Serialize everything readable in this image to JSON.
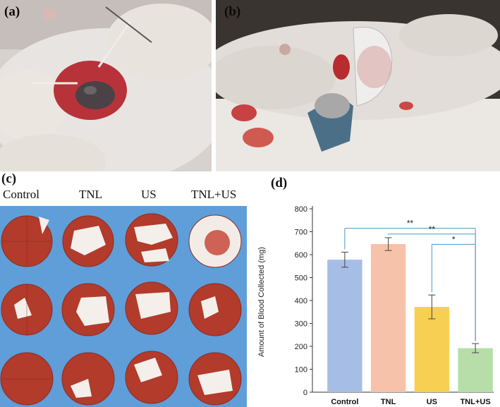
{
  "panels": {
    "a": {
      "label": "(a)"
    },
    "b": {
      "label": "(b)"
    },
    "c": {
      "label": "(c)",
      "columns": [
        "Control",
        "TNL",
        "US",
        "TNL+US"
      ]
    },
    "d": {
      "label": "(d)"
    }
  },
  "chart_data": {
    "type": "bar",
    "categories": [
      "Control",
      "TNL",
      "US",
      "TNL+US"
    ],
    "values": [
      578,
      646,
      372,
      192
    ],
    "errors": [
      33,
      28,
      52,
      20
    ],
    "colors": [
      "#a6bde6",
      "#f6c2a9",
      "#f7cf52",
      "#b7dea9"
    ],
    "ylabel": "Amount of Blood Collected (mg)",
    "xlabel": "",
    "ylim": [
      0,
      800
    ],
    "yticks": [
      0,
      100,
      200,
      300,
      400,
      500,
      600,
      700,
      800
    ],
    "significance": [
      {
        "from": "Control",
        "to": "TNL+US",
        "label": "**"
      },
      {
        "from": "TNL",
        "to": "TNL+US",
        "label": "**"
      },
      {
        "from": "US",
        "to": "TNL+US",
        "label": "*"
      }
    ],
    "bracket_color": "#4a98c9"
  }
}
